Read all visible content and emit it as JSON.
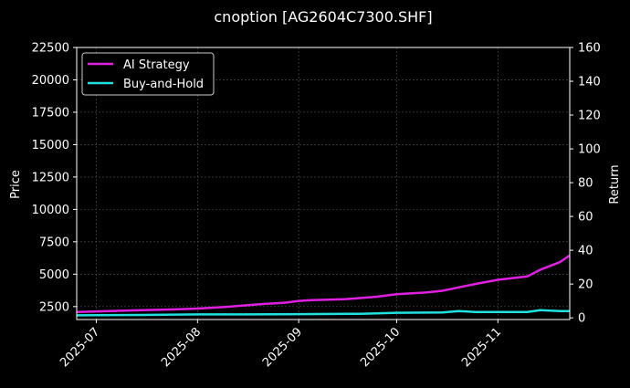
{
  "chart_data": {
    "type": "line",
    "title": "cnoption [AG2604C7300.SHF]",
    "xlabel": "",
    "ylabel_left": "Price",
    "ylabel_right": "Return",
    "x_ticks": [
      "2025-07",
      "2025-08",
      "2025-09",
      "2025-10",
      "2025-11"
    ],
    "x_range": [
      "2025-06-25",
      "2025-11-23"
    ],
    "y_left_ticks": [
      2500,
      5000,
      7500,
      10000,
      12500,
      15000,
      17500,
      20000,
      22500
    ],
    "y_left_range": [
      1500,
      22500
    ],
    "y_right_ticks": [
      0,
      20,
      40,
      60,
      80,
      100,
      120,
      140,
      160
    ],
    "y_right_range": [
      -1,
      160
    ],
    "grid": true,
    "legend_position": "top-left",
    "series": [
      {
        "name": "AI Strategy",
        "color": "#e020e0",
        "axis": "right",
        "x": [
          "2025-06-25",
          "2025-07-05",
          "2025-07-15",
          "2025-07-25",
          "2025-08-01",
          "2025-08-10",
          "2025-08-20",
          "2025-08-28",
          "2025-09-01",
          "2025-09-05",
          "2025-09-15",
          "2025-09-25",
          "2025-10-01",
          "2025-10-10",
          "2025-10-15",
          "2025-10-20",
          "2025-10-25",
          "2025-11-01",
          "2025-11-10",
          "2025-11-14",
          "2025-11-20",
          "2025-11-23"
        ],
        "values": [
          3.5,
          4.0,
          4.5,
          5.0,
          5.5,
          6.5,
          8.0,
          9.0,
          10.0,
          10.5,
          11.0,
          12.5,
          14.0,
          15.0,
          16.0,
          18.0,
          20.0,
          22.5,
          24.5,
          28.5,
          33.0,
          37.0
        ]
      },
      {
        "name": "Buy-and-Hold",
        "color": "#20e0e0",
        "axis": "right",
        "x": [
          "2025-06-25",
          "2025-07-15",
          "2025-08-01",
          "2025-08-15",
          "2025-09-01",
          "2025-09-20",
          "2025-10-01",
          "2025-10-15",
          "2025-10-20",
          "2025-10-25",
          "2025-11-01",
          "2025-11-10",
          "2025-11-14",
          "2025-11-20",
          "2025-11-23"
        ],
        "values": [
          1.5,
          1.7,
          2.0,
          2.0,
          2.2,
          2.4,
          3.0,
          3.2,
          4.0,
          3.5,
          3.5,
          3.5,
          4.5,
          4.0,
          4.0
        ]
      }
    ]
  }
}
